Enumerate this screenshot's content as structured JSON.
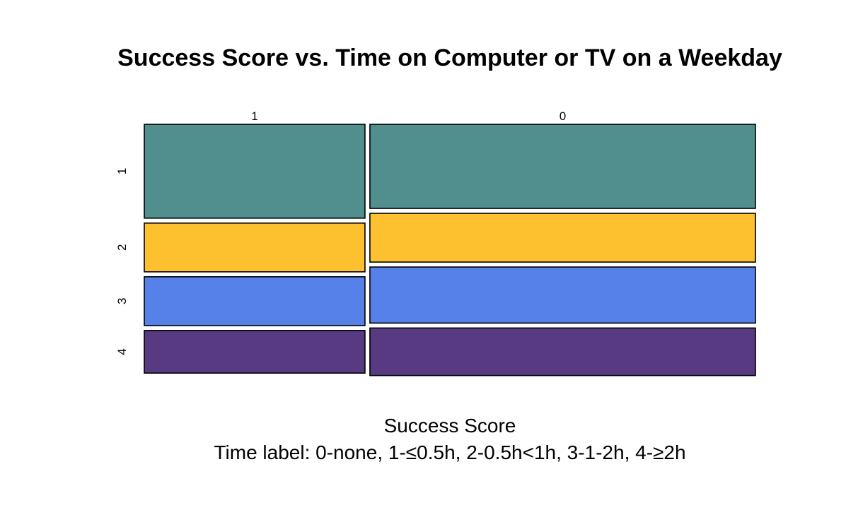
{
  "chart_data": {
    "type": "mosaic",
    "title": "Success Score vs. Time on Computer or TV on a Weekday",
    "xlabel": "Success Score",
    "subtitle": "Time label: 0-none, 1-≤0.5h, 2-0.5h<1h, 3-1-2h, 4-≥2h",
    "column_categories": [
      "1",
      "0"
    ],
    "column_widths": [
      0.364,
      0.636
    ],
    "row_categories": [
      "1",
      "2",
      "3",
      "4"
    ],
    "colors": [
      "#518f8e",
      "#fdc02f",
      "#5581e8",
      "#583a82"
    ],
    "proportions": [
      [
        0.385,
        0.2,
        0.2,
        0.175
      ],
      [
        0.345,
        0.2,
        0.23,
        0.195
      ]
    ]
  }
}
